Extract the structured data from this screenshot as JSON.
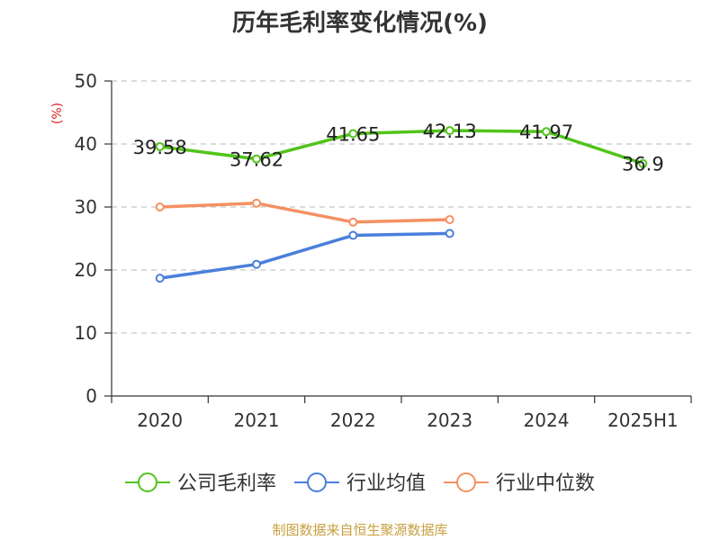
{
  "chart_data": {
    "type": "line",
    "title": "历年毛利率变化情况(%)",
    "ylabel": "(%)",
    "categories": [
      "2020",
      "2021",
      "2022",
      "2023",
      "2024",
      "2025H1"
    ],
    "ylim": [
      0,
      50
    ],
    "yticks": [
      0,
      10,
      20,
      30,
      40,
      50
    ],
    "grid": true,
    "legend_position": "bottom",
    "series": [
      {
        "name": "公司毛利率",
        "color": "#52c41a",
        "values": [
          39.58,
          37.62,
          41.65,
          42.13,
          41.97,
          36.9
        ],
        "labels": [
          "39.58",
          "37.62",
          "41.65",
          "42.13",
          "41.97",
          "36.9"
        ]
      },
      {
        "name": "行业均值",
        "color": "#4a7fdb",
        "values": [
          18.7,
          20.9,
          25.5,
          25.8,
          null,
          null
        ]
      },
      {
        "name": "行业中位数",
        "color": "#f59062",
        "values": [
          30.0,
          30.6,
          27.6,
          28.0,
          null,
          null
        ]
      }
    ],
    "ylabel_color": "#e02020"
  },
  "source_text": "制图数据来自恒生聚源数据库",
  "source_color": "#c8a040"
}
